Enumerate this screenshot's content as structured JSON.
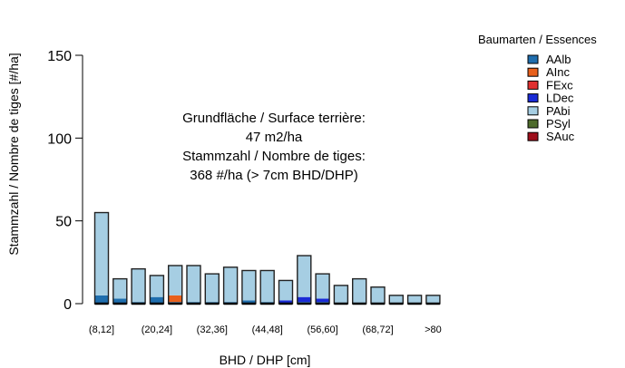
{
  "chart_data": {
    "type": "bar",
    "stacked": true,
    "xlabel": "BHD / DHP [cm]",
    "ylabel": "Stammzahl / Nombre de tiges [#/ha]",
    "ylim": [
      0,
      150
    ],
    "yticks": [
      0,
      50,
      100,
      150
    ],
    "grid": false,
    "categories": [
      "(8,12]",
      "(12,16]",
      "(16,20]",
      "(20,24]",
      "(24,28]",
      "(28,32]",
      "(32,36]",
      "(36,40]",
      "(40,44]",
      "(44,48]",
      "(48,52]",
      "(52,56]",
      "(56,60]",
      "(60,64]",
      "(64,68]",
      "(68,72]",
      "(72,76]",
      "(76,80]",
      ">80"
    ],
    "category_labels_shown": [
      "(8,12]",
      "",
      "",
      "(20,24]",
      "",
      "",
      "(32,36]",
      "",
      "",
      "(44,48]",
      "",
      "",
      "(56,60]",
      "",
      "",
      "(68,72]",
      "",
      "",
      ">80"
    ],
    "series": [
      {
        "name": "AAlb",
        "color": "#1F6EAE",
        "values": [
          5,
          3,
          1,
          4,
          1,
          1,
          1,
          1,
          2,
          1,
          0,
          1,
          1,
          0,
          0,
          0,
          0,
          0,
          0
        ]
      },
      {
        "name": "AInc",
        "color": "#E8601C",
        "values": [
          0,
          0,
          0,
          0,
          4,
          0,
          0,
          0,
          0,
          0,
          0,
          0,
          0,
          0,
          0,
          0,
          0,
          0,
          0
        ]
      },
      {
        "name": "FExc",
        "color": "#E03030",
        "values": [
          0,
          0,
          0,
          0,
          0,
          0,
          0,
          0,
          0,
          0,
          0,
          0,
          0,
          0,
          0,
          0,
          0,
          0,
          0
        ]
      },
      {
        "name": "LDec",
        "color": "#1A2BD6",
        "values": [
          0,
          0,
          0,
          0,
          0,
          0,
          0,
          0,
          0,
          0,
          2,
          3,
          2,
          0,
          0,
          0,
          0,
          0,
          0
        ]
      },
      {
        "name": "PAbi",
        "color": "#A6CEE3",
        "values": [
          50,
          12,
          20,
          13,
          18,
          22,
          17,
          21,
          18,
          19,
          12,
          25,
          15,
          11,
          15,
          10,
          5,
          5,
          5
        ]
      },
      {
        "name": "PSyl",
        "color": "#4E6B2C",
        "values": [
          0,
          0,
          0,
          0,
          0,
          0,
          0,
          0,
          0,
          0,
          0,
          0,
          0,
          0,
          0,
          0,
          0,
          0,
          0
        ]
      },
      {
        "name": "SAuc",
        "color": "#9E0F1B",
        "values": [
          0,
          0,
          0,
          0,
          0,
          0,
          0,
          0,
          0,
          0,
          0,
          0,
          0,
          0,
          0,
          0,
          0,
          0,
          0
        ]
      }
    ],
    "legend_title": "Baumarten / Essences",
    "legend_placement": "right",
    "annotation_lines": [
      "Grundfläche / Surface terrière:",
      "47 m2/ha",
      "Stammzahl / Nombre de tiges:",
      "368 #/ha (> 7cm BHD/DHP)"
    ]
  }
}
